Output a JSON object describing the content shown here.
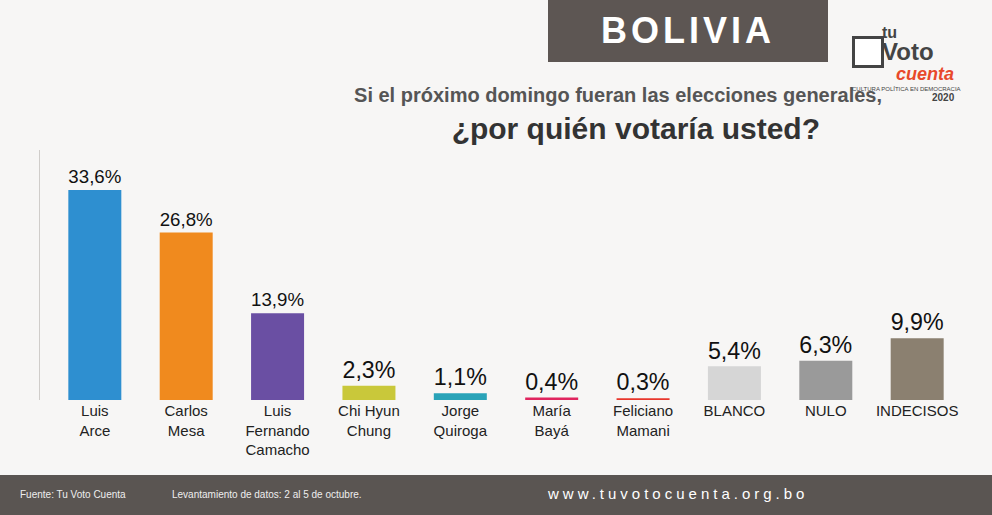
{
  "chart_data": {
    "type": "bar",
    "subtitle": "Si el próximo domingo fueran las elecciones generales,",
    "title": "¿por quién votaría usted?",
    "categories": [
      "Luis Arce",
      "Carlos Mesa",
      "Luis Fernando Camacho",
      "Chi Hyun Chung",
      "Jorge Quiroga",
      "María Bayá",
      "Feliciano Mamani",
      "BLANCO",
      "NULO",
      "INDECISOS"
    ],
    "values": [
      33.6,
      26.8,
      13.9,
      2.3,
      1.1,
      0.4,
      0.3,
      5.4,
      6.3,
      9.9
    ],
    "value_labels": [
      "33,6%",
      "26,8%",
      "13,9%",
      "2,3%",
      "1,1%",
      "0,4%",
      "0,3%",
      "5,4%",
      "6,3%",
      "9,9%"
    ],
    "colors": [
      "#2e8fd0",
      "#f08a1e",
      "#6a4fa3",
      "#c9c83a",
      "#2aa3b8",
      "#e0245e",
      "#e8362b",
      "#d6d6d6",
      "#9a9a9a",
      "#8b8070"
    ],
    "ylim": [
      0,
      40
    ],
    "data_labels": true,
    "tick_labels": "x",
    "grid": false
  },
  "header": {
    "title": "BOLIVIA"
  },
  "logo": {
    "top": "tu",
    "main": "Voto",
    "script": "cuenta",
    "tagline": "CULTURA POLÍTICA EN DEMOCRACIA",
    "year": "2020"
  },
  "footer": {
    "source": "Fuente: Tu Voto Cuenta",
    "dates": "Levantamiento de datos: 2 al 5 de octubre.",
    "website": "www.tuvotocuenta.org.bo"
  }
}
